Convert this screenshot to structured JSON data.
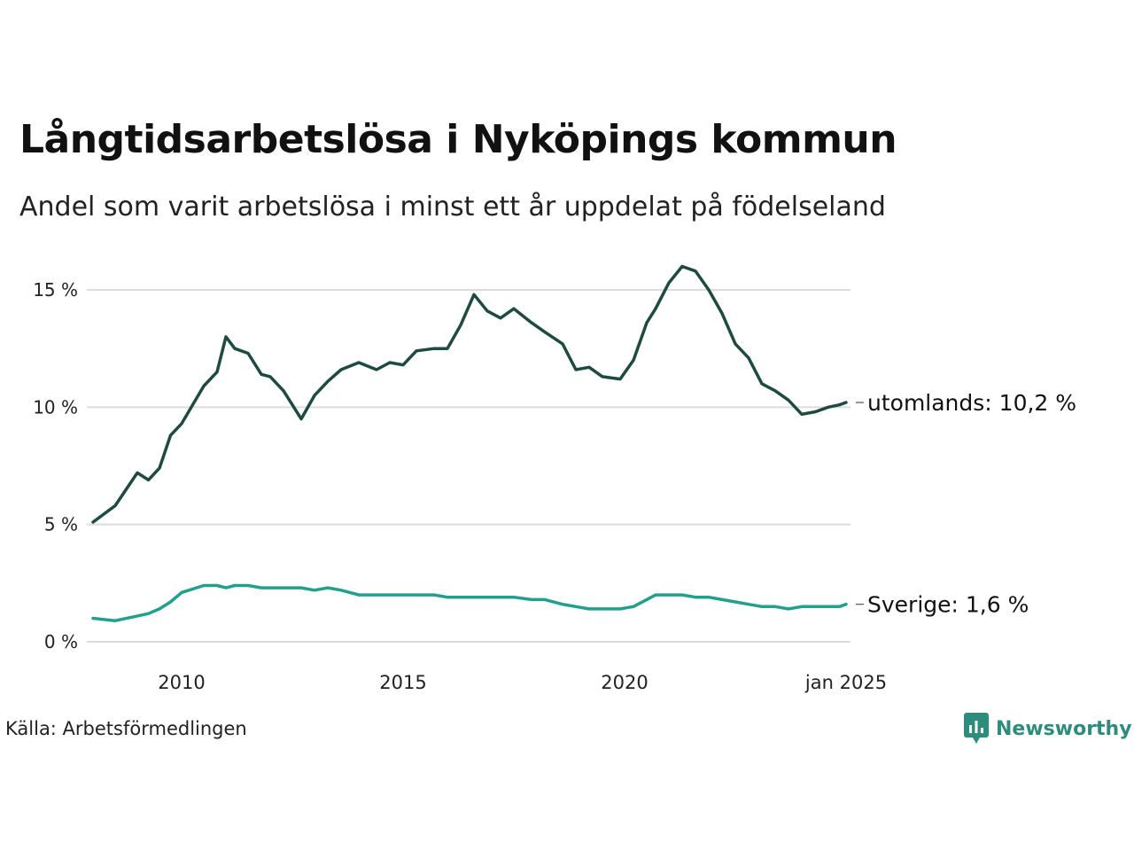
{
  "title": "Långtidsarbetslösa i Nyköpings kommun",
  "subtitle": "Andel som varit arbetslösa i minst ett år uppdelat på födelseland",
  "source": "Källa: Arbetsförmedlingen",
  "brand": {
    "name": "Newsworthy",
    "color": "#2e8c7d",
    "icon": "newsworthy-logo-icon"
  },
  "chart_data": {
    "type": "line",
    "ylim": [
      0,
      16
    ],
    "yticks": [
      0,
      5,
      10,
      15
    ],
    "ytick_labels": [
      "0 %",
      "5 %",
      "10 %",
      "15 %"
    ],
    "xticks": [
      2010,
      2015,
      2020,
      2025.0
    ],
    "xtick_labels": [
      "2010",
      "2015",
      "2020",
      "jan 2025"
    ],
    "grid": true,
    "legend": "end-of-line labels",
    "x": [
      2008.0,
      2008.5,
      2009.0,
      2009.25,
      2009.5,
      2009.75,
      2010.0,
      2010.5,
      2010.8,
      2011.0,
      2011.2,
      2011.5,
      2011.8,
      2012.0,
      2012.3,
      2012.7,
      2013.0,
      2013.3,
      2013.6,
      2014.0,
      2014.4,
      2014.7,
      2015.0,
      2015.3,
      2015.7,
      2016.0,
      2016.3,
      2016.6,
      2016.9,
      2017.2,
      2017.5,
      2017.9,
      2018.2,
      2018.6,
      2018.9,
      2019.2,
      2019.5,
      2019.9,
      2020.2,
      2020.5,
      2020.7,
      2021.0,
      2021.3,
      2021.6,
      2021.9,
      2022.2,
      2022.5,
      2022.8,
      2023.1,
      2023.4,
      2023.7,
      2024.0,
      2024.3,
      2024.6,
      2024.85,
      2025.0
    ],
    "series": [
      {
        "name": "utomlands",
        "end_label": "utomlands: 10,2 %",
        "color": "#1f4a42",
        "values": [
          5.1,
          5.8,
          7.2,
          6.9,
          7.4,
          8.8,
          9.3,
          10.9,
          11.5,
          13.0,
          12.5,
          12.3,
          11.4,
          11.3,
          10.7,
          9.5,
          10.5,
          11.1,
          11.6,
          11.9,
          11.6,
          11.9,
          11.8,
          12.4,
          12.5,
          12.5,
          13.5,
          14.8,
          14.1,
          13.8,
          14.2,
          13.6,
          13.2,
          12.7,
          11.6,
          11.7,
          11.3,
          11.2,
          12.0,
          13.6,
          14.2,
          15.3,
          16.0,
          15.8,
          15.0,
          14.0,
          12.7,
          12.1,
          11.0,
          10.7,
          10.3,
          9.7,
          9.8,
          10.0,
          10.1,
          10.2
        ]
      },
      {
        "name": "Sverige",
        "end_label": "Sverige:  1,6 %",
        "color": "#22a08c",
        "values": [
          1.0,
          0.9,
          1.1,
          1.2,
          1.4,
          1.7,
          2.1,
          2.4,
          2.4,
          2.3,
          2.4,
          2.4,
          2.3,
          2.3,
          2.3,
          2.3,
          2.2,
          2.3,
          2.2,
          2.0,
          2.0,
          2.0,
          2.0,
          2.0,
          2.0,
          1.9,
          1.9,
          1.9,
          1.9,
          1.9,
          1.9,
          1.8,
          1.8,
          1.6,
          1.5,
          1.4,
          1.4,
          1.4,
          1.5,
          1.8,
          2.0,
          2.0,
          2.0,
          1.9,
          1.9,
          1.8,
          1.7,
          1.6,
          1.5,
          1.5,
          1.4,
          1.5,
          1.5,
          1.5,
          1.5,
          1.6
        ]
      }
    ]
  }
}
